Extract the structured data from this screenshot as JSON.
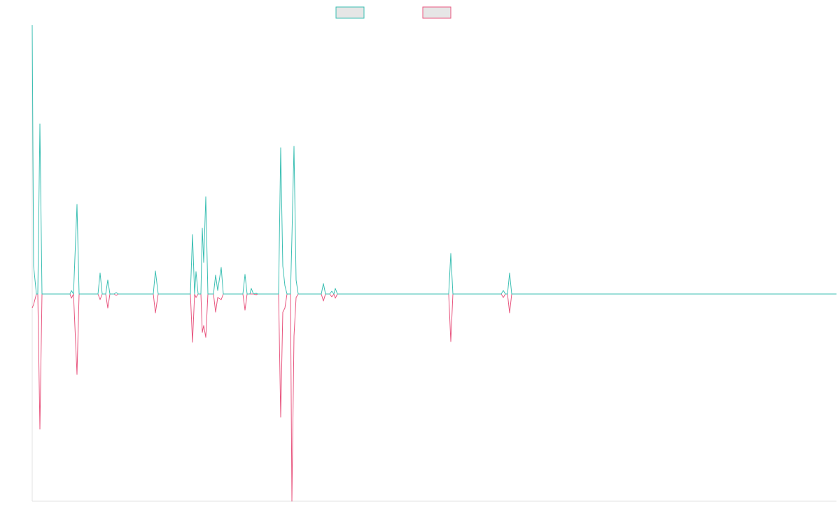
{
  "chart_data": {
    "type": "line",
    "x": [
      46,
      48,
      52,
      54,
      57,
      60,
      100,
      102,
      105,
      110,
      113,
      140,
      143,
      146,
      151,
      154,
      157,
      163,
      166,
      169,
      219,
      222,
      226,
      272,
      275,
      278,
      280,
      283,
      287,
      289,
      291,
      294,
      297,
      305,
      308,
      311,
      316,
      319,
      347,
      350,
      353,
      357,
      359,
      362,
      366,
      368,
      398,
      401,
      404,
      407,
      410,
      415,
      417,
      420,
      423,
      426,
      459,
      462,
      465,
      471,
      474,
      477,
      479,
      482,
      641,
      644,
      647,
      716,
      719,
      722,
      725,
      728,
      731,
      1195
    ],
    "series": [
      {
        "color": "#3bbfb3",
        "values": [
          384,
          40,
          0,
          0,
          243,
          0,
          0,
          5,
          0,
          128,
          0,
          0,
          30,
          0,
          0,
          20,
          0,
          0,
          2,
          0,
          0,
          33,
          0,
          0,
          85,
          0,
          32,
          0,
          0,
          94,
          45,
          139,
          0,
          0,
          27,
          5,
          38,
          0,
          0,
          28,
          0,
          0,
          8,
          0,
          1,
          0,
          0,
          209,
          40,
          12,
          0,
          0,
          80,
          211,
          20,
          0,
          0,
          15,
          0,
          0,
          4,
          0,
          8,
          0,
          0,
          58,
          0,
          0,
          5,
          0,
          0,
          30,
          0,
          0
        ]
      },
      {
        "color": "#e8567f",
        "values": [
          -20,
          -15,
          0,
          0,
          -193,
          0,
          0,
          -6,
          0,
          -115,
          0,
          0,
          -8,
          0,
          0,
          -20,
          0,
          0,
          -2,
          0,
          0,
          -27,
          0,
          0,
          -69,
          0,
          -5,
          0,
          0,
          -55,
          -45,
          -62,
          0,
          0,
          -26,
          -5,
          -8,
          0,
          0,
          -23,
          0,
          0,
          0,
          0,
          -1,
          0,
          0,
          -176,
          -26,
          -20,
          0,
          0,
          -296,
          -60,
          -5,
          0,
          0,
          -10,
          0,
          0,
          -4,
          0,
          -6,
          0,
          0,
          -68,
          0,
          0,
          -5,
          0,
          0,
          -27,
          0,
          0
        ]
      }
    ],
    "xlim": [
      46,
      1195
    ],
    "ylim": [
      -296,
      384
    ]
  }
}
